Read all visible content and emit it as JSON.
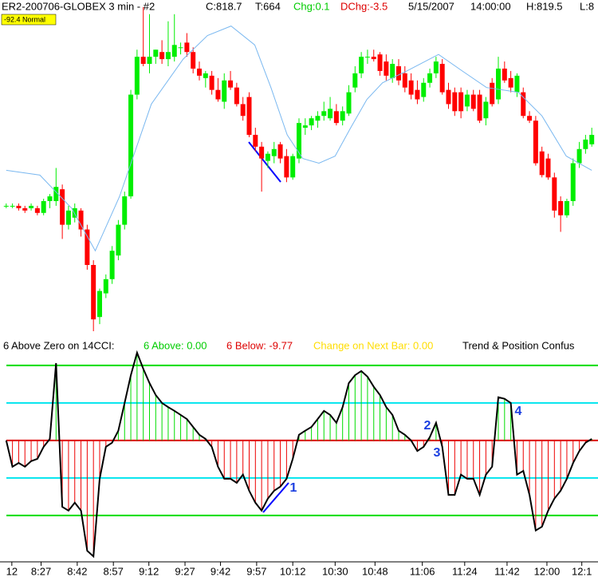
{
  "header": {
    "symbol": "ER2-200706-GLOBEX  3 min  - #2",
    "close": "C:818.7",
    "ticks": "T:664",
    "chg": "Chg:0.1",
    "dchg": "DChg:-3.5",
    "date": "5/15/2007",
    "time": "14:00:00",
    "high": "H:819.5",
    "low": "L:8",
    "badge": "-92.4 Normal"
  },
  "chart_data": [
    {
      "type": "candlestick",
      "up_color": "#00ee00",
      "down_color": "#ff0000",
      "xlim": [
        -1,
        95
      ],
      "ylim": [
        811,
        825
      ],
      "open": [
        816.3,
        816.3,
        816.3,
        816.2,
        816.2,
        816.2,
        816.0,
        816.5,
        816.5,
        817.0,
        815.5,
        815.8,
        816.1,
        815.3,
        813.8,
        811.6,
        812.6,
        813.2,
        814.2,
        815.5,
        816.7,
        821.0,
        822.6,
        822.3,
        822.6,
        822.8,
        822.5,
        822.6,
        823.0,
        823.2,
        822.8,
        822.1,
        821.7,
        821.8,
        821.2,
        820.7,
        821.6,
        821.3,
        820.6,
        820.9,
        819.3,
        818.8,
        818.2,
        818.4,
        818.9,
        818.4,
        817.5,
        818.3,
        819.6,
        819.7,
        819.9,
        820.1,
        820.0,
        820.3,
        819.9,
        820.2,
        821.3,
        821.9,
        822.6,
        822.6,
        822.7,
        822.4,
        821.7,
        822.2,
        821.9,
        821.6,
        821.2,
        820.9,
        821.5,
        821.9,
        822.3,
        821.2,
        821.1,
        821.1,
        820.5,
        821.0,
        821.0,
        820.0,
        821.5,
        820.8,
        822.1,
        821.7,
        821.1,
        821.1,
        820.1,
        819.9,
        818.6,
        818.3,
        817.5,
        816.5,
        815.9,
        816.5,
        818.1,
        818.7,
        818.9
      ],
      "high": [
        816.4,
        816.4,
        816.4,
        816.3,
        816.4,
        816.3,
        816.6,
        816.8,
        817.9,
        817.2,
        816.3,
        816.4,
        816.2,
        815.5,
        814.0,
        812.8,
        813.4,
        814.6,
        815.7,
        816.9,
        821.2,
        822.9,
        824.7,
        824.4,
        822.9,
        823.3,
        824.1,
        824.4,
        823.2,
        823.6,
        823.0,
        822.4,
        822.0,
        822.0,
        821.7,
        821.9,
        822.0,
        821.5,
        820.9,
        821.1,
        819.6,
        819.0,
        818.6,
        819.0,
        819.0,
        818.7,
        818.5,
        820.0,
        820.0,
        820.1,
        820.3,
        820.7,
        820.9,
        820.6,
        820.5,
        821.4,
        822.2,
        822.8,
        822.9,
        822.9,
        822.8,
        822.7,
        822.5,
        822.5,
        822.2,
        821.9,
        821.6,
        821.7,
        822.1,
        822.6,
        822.5,
        821.5,
        821.3,
        821.3,
        821.2,
        821.2,
        821.2,
        820.9,
        821.7,
        822.6,
        822.4,
        822.0,
        821.9,
        821.3,
        820.3,
        820.1,
        818.8,
        818.5,
        817.7,
        816.7,
        816.6,
        818.3,
        819.0,
        819.3,
        819.6
      ],
      "low": [
        816.2,
        816.2,
        816.1,
        816.0,
        816.1,
        815.9,
        815.9,
        816.2,
        816.3,
        814.9,
        815.3,
        815.6,
        815.0,
        813.6,
        811.0,
        811.3,
        812.4,
        813.0,
        814.0,
        815.3,
        816.6,
        820.8,
        822.2,
        821.9,
        822.3,
        822.3,
        822.2,
        822.4,
        822.7,
        822.6,
        821.9,
        821.6,
        821.3,
        821.0,
        820.7,
        820.4,
        821.2,
        820.5,
        819.9,
        819.2,
        818.6,
        816.9,
        817.9,
        818.1,
        818.1,
        817.3,
        817.4,
        818.1,
        819.3,
        819.5,
        819.6,
        819.9,
        819.9,
        819.7,
        819.7,
        820.1,
        821.1,
        821.7,
        822.3,
        822.4,
        821.8,
        821.6,
        821.5,
        821.4,
        821.1,
        820.8,
        820.6,
        820.7,
        821.3,
        821.7,
        821.0,
        820.4,
        820.1,
        820.0,
        820.3,
        820.3,
        819.8,
        819.7,
        820.5,
        820.6,
        821.5,
        821.1,
        820.9,
        820.0,
        819.8,
        818.0,
        817.5,
        817.4,
        815.8,
        815.2,
        815.8,
        816.3,
        817.9,
        818.5,
        818.8
      ],
      "close": [
        816.3,
        816.3,
        816.2,
        816.1,
        816.3,
        816.0,
        816.5,
        816.7,
        817.1,
        815.5,
        816.1,
        816.2,
        815.3,
        813.8,
        811.5,
        812.7,
        813.2,
        814.4,
        815.5,
        816.7,
        821.0,
        822.6,
        822.3,
        822.6,
        822.9,
        822.5,
        822.8,
        823.1,
        823.0,
        822.8,
        822.1,
        821.8,
        821.9,
        821.2,
        820.8,
        821.6,
        821.3,
        820.6,
        820.1,
        819.3,
        818.8,
        818.3,
        818.5,
        818.7,
        818.3,
        817.5,
        818.4,
        819.8,
        819.7,
        820.0,
        820.1,
        820.3,
        820.4,
        819.8,
        820.3,
        821.1,
        821.9,
        822.6,
        822.6,
        822.5,
        822.0,
        821.8,
        822.3,
        821.6,
        821.3,
        821.0,
        820.8,
        821.5,
        821.9,
        822.4,
        821.1,
        820.6,
        820.3,
        820.3,
        821.0,
        820.4,
        819.9,
        820.7,
        820.6,
        822.1,
        821.6,
        821.3,
        821.8,
        820.1,
        819.9,
        818.1,
        817.6,
        817.5,
        816.1,
        815.9,
        816.5,
        818.1,
        818.7,
        819.1,
        819.3
      ],
      "overlay": {
        "color": "#7ab8f0",
        "x": [
          0,
          5.4,
          10.5,
          14.3,
          18.2,
          23.3,
          28.4,
          32.3,
          36.1,
          39.9,
          42.5,
          45.1,
          47.6,
          50.2,
          52.8,
          55.3,
          57.9,
          60.4,
          64.3,
          69.4,
          73.2,
          77.1,
          82.2,
          86.0,
          89.9,
          94
        ],
        "values": [
          817.8,
          817.6,
          816.2,
          814.4,
          816.7,
          820.6,
          822.5,
          823.5,
          823.9,
          823.1,
          821.3,
          819.3,
          818.3,
          818.1,
          818.4,
          819.6,
          820.8,
          821.5,
          822.0,
          822.7,
          822.0,
          821.3,
          821.1,
          820.1,
          818.4,
          817.8
        ]
      }
    },
    {
      "type": "cci-histogram",
      "texts": [
        "6 Above Zero on 14CCI:",
        "6 Above: 0.00",
        "6 Below: -9.77",
        "Change on Next Bar: 0.00",
        "Trend & Position Confus"
      ],
      "text_colors": [
        "#000000",
        "#00cc00",
        "#dd0000",
        "#ffdd00",
        "#000000"
      ],
      "up_color": "#00dd00",
      "down_color": "#ee0000",
      "line_color": "#000000",
      "xlim": [
        -1,
        95
      ],
      "ylim": [
        -315,
        238
      ],
      "values": [
        0,
        -70,
        -60,
        -70,
        -55,
        -49,
        -17,
        4,
        206,
        -177,
        -187,
        -166,
        -187,
        -294,
        -309,
        -102,
        -17,
        -6,
        26,
        100,
        174,
        234,
        191,
        153,
        121,
        100,
        89,
        79,
        68,
        57,
        36,
        15,
        4,
        -17,
        -70,
        -102,
        -102,
        -113,
        -91,
        -134,
        -166,
        -187,
        -155,
        -134,
        -123,
        -102,
        -49,
        15,
        26,
        36,
        57,
        79,
        68,
        47,
        89,
        153,
        174,
        185,
        170,
        143,
        121,
        89,
        68,
        26,
        15,
        0,
        -28,
        -17,
        9,
        47,
        -17,
        -145,
        -145,
        -91,
        -102,
        -102,
        -145,
        -91,
        -70,
        115,
        111,
        100,
        -91,
        -81,
        -145,
        -240,
        -230,
        -187,
        -155,
        -134,
        -102,
        -60,
        -28,
        -6,
        4
      ],
      "levels": [
        200,
        100,
        0,
        -100,
        -200
      ],
      "level_colors": [
        "#00dd00",
        "#00e5ee",
        "#dd0000",
        "#00e5ee",
        "#00dd00"
      ],
      "annotations": [
        "1",
        "2",
        "3",
        "4"
      ],
      "xticks": [
        {
          "value": 0.9,
          "label": "12"
        },
        {
          "value": 5.6,
          "label": "8:27"
        },
        {
          "value": 11.4,
          "label": "8:42"
        },
        {
          "value": 17.2,
          "label": "8:57"
        },
        {
          "value": 22.9,
          "label": "9:12"
        },
        {
          "value": 28.7,
          "label": "9:27"
        },
        {
          "value": 34.4,
          "label": "9:42"
        },
        {
          "value": 40.2,
          "label": "9:57"
        },
        {
          "value": 46.0,
          "label": "10:12"
        },
        {
          "value": 52.8,
          "label": "10:30"
        },
        {
          "value": 59.2,
          "label": "10:48"
        },
        {
          "value": 66.8,
          "label": "11:06"
        },
        {
          "value": 73.6,
          "label": "11:24"
        },
        {
          "value": 80.4,
          "label": "11:42"
        },
        {
          "value": 86.8,
          "label": "12:00"
        },
        {
          "value": 92.4,
          "label": "12:1"
        }
      ]
    }
  ]
}
